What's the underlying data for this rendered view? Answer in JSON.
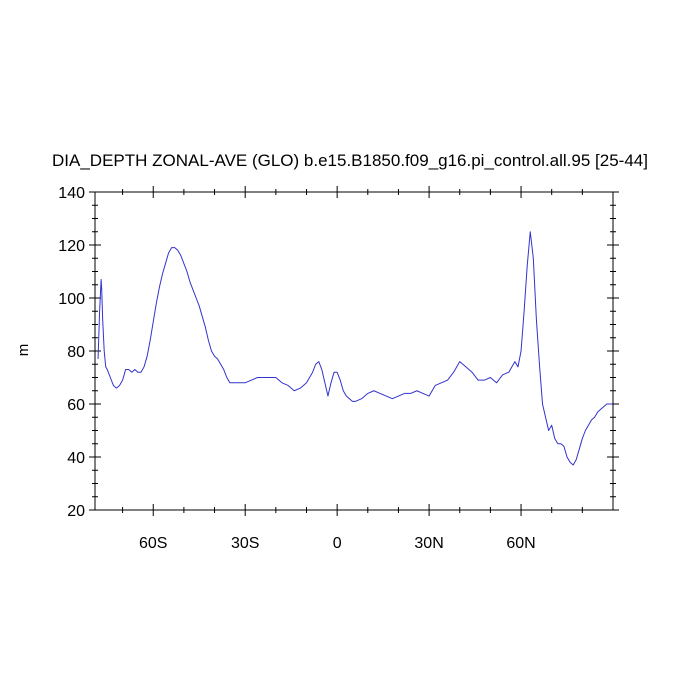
{
  "chart_data": {
    "type": "line",
    "title": "DIA_DEPTH ZONAL-AVE (GLO) b.e15.B1850.f09_g16.pi_control.all.95 [25-44]",
    "xlabel": "",
    "ylabel": "m",
    "xlim": [
      -79,
      90
    ],
    "ylim": [
      20,
      140
    ],
    "x_ticks": [
      -60,
      -30,
      0,
      30,
      60
    ],
    "x_tick_labels": [
      "60S",
      "30S",
      "0",
      "30N",
      "60N"
    ],
    "y_ticks": [
      20,
      40,
      60,
      80,
      100,
      120,
      140
    ],
    "y_tick_labels": [
      "20",
      "40",
      "60",
      "80",
      "100",
      "120",
      "140"
    ],
    "grid": false,
    "line_color": "#3333cc",
    "series": [
      {
        "x": [
          -78,
          -77.5,
          -77,
          -76.8,
          -76.5,
          -76,
          -75.5,
          -75,
          -74,
          -73,
          -72,
          -71,
          -70,
          -69,
          -68,
          -67,
          -66,
          -65,
          -64,
          -63,
          -62,
          -61,
          -60,
          -59,
          -58,
          -57,
          -56,
          -55,
          -54,
          -53,
          -52,
          -51,
          -50,
          -49,
          -48,
          -47,
          -46,
          -45,
          -44,
          -43,
          -42,
          -41,
          -40,
          -39,
          -38,
          -37,
          -36,
          -35,
          -34,
          -32,
          -30,
          -28,
          -26,
          -24,
          -22,
          -20,
          -18,
          -16,
          -14,
          -12,
          -11,
          -10,
          -9,
          -8,
          -7,
          -6,
          -5,
          -4,
          -3,
          -2,
          -1,
          0,
          1,
          2,
          3,
          4,
          5,
          6,
          8,
          10,
          12,
          14,
          16,
          18,
          20,
          22,
          24,
          26,
          28,
          30,
          32,
          34,
          36,
          38,
          40,
          42,
          44,
          46,
          48,
          50,
          52,
          54,
          56,
          57,
          58,
          59,
          60,
          61,
          62,
          63,
          64,
          65,
          66,
          67,
          68,
          69,
          70,
          71,
          72,
          73,
          74,
          75,
          76,
          77,
          78,
          79,
          80,
          81,
          82,
          83,
          84,
          85,
          86,
          87,
          88,
          89,
          90
        ],
        "values": [
          77,
          95,
          107,
          103,
          92,
          80,
          74,
          73,
          70,
          67,
          66,
          67,
          69,
          73,
          73,
          72,
          73,
          72,
          72,
          74,
          78,
          84,
          91,
          98,
          104,
          109,
          113,
          117,
          119,
          119,
          118,
          116,
          113,
          110,
          106,
          103,
          100,
          97,
          93,
          89,
          84,
          80,
          78,
          77,
          75,
          73,
          70,
          68,
          68,
          68,
          68,
          69,
          70,
          70,
          70,
          70,
          68,
          67,
          65,
          66,
          67,
          68,
          70,
          72,
          75,
          76,
          73,
          68,
          63,
          68,
          72,
          72,
          69,
          65,
          63,
          62,
          61,
          61,
          62,
          64,
          65,
          64,
          63,
          62,
          63,
          64,
          64,
          65,
          64,
          63,
          67,
          68,
          69,
          72,
          76,
          74,
          72,
          69,
          69,
          70,
          68,
          71,
          72,
          74,
          76,
          74,
          80,
          95,
          112,
          125,
          115,
          92,
          75,
          60,
          55,
          50,
          52,
          47,
          45,
          45,
          44,
          40,
          38,
          37,
          39,
          43,
          47,
          50,
          52,
          54,
          55,
          57,
          58,
          59,
          60,
          60,
          60
        ]
      }
    ]
  }
}
